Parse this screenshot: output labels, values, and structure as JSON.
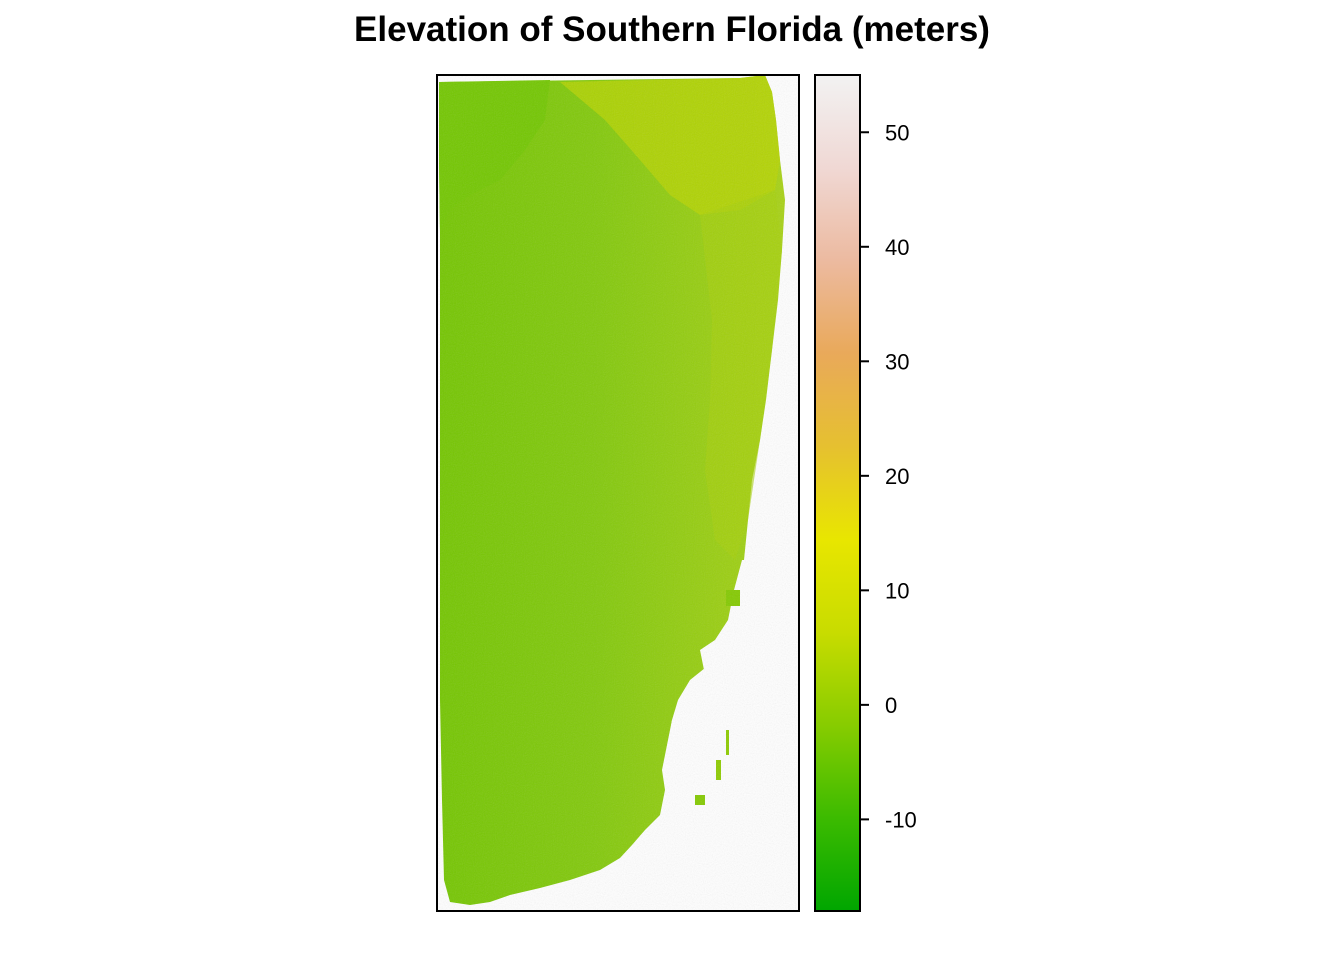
{
  "title": "Elevation of Southern Florida (meters)",
  "legend": {
    "range": [
      -18,
      55
    ],
    "ticks": [
      {
        "value": 50,
        "label": "50"
      },
      {
        "value": 40,
        "label": "40"
      },
      {
        "value": 30,
        "label": "30"
      },
      {
        "value": 20,
        "label": "20"
      },
      {
        "value": 10,
        "label": "10"
      },
      {
        "value": 0,
        "label": "0"
      },
      {
        "value": -10,
        "label": "-10"
      }
    ],
    "palette": [
      "#00a600",
      "#3cbb00",
      "#87cc00",
      "#c8dc00",
      "#e8e600",
      "#e6c030",
      "#e9a95a",
      "#ecbaa0",
      "#f0d8d4",
      "#f2f2f2"
    ]
  },
  "colors": {
    "land_base": "#7fc80a",
    "land_dark": "#73c700",
    "land_yellow": "#b8d400",
    "water": "#ffffff",
    "frame": "#000000"
  }
}
